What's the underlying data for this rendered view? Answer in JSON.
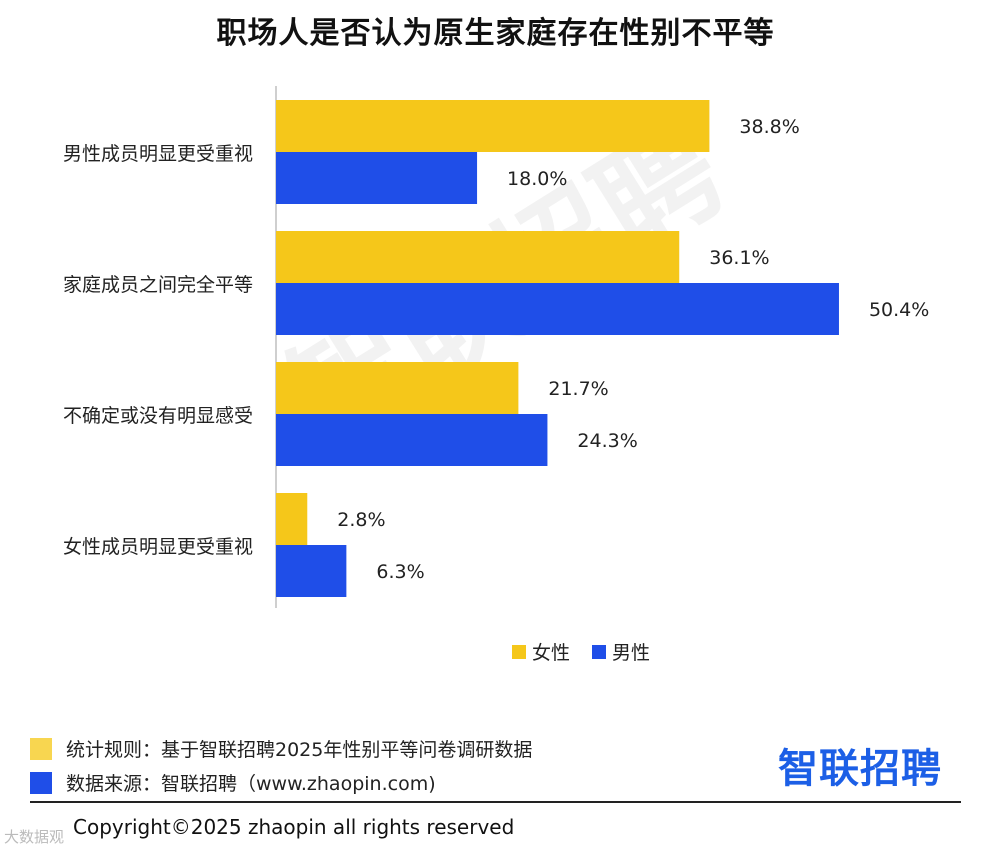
{
  "title": "职场人是否认为原生家庭存在性别不平等",
  "watermark": "智联招聘",
  "colors": {
    "female": "#f5c71a",
    "male": "#1f4ee8"
  },
  "chart_data": {
    "type": "bar",
    "orientation": "horizontal",
    "categories": [
      "男性成员明显更受重视",
      "家庭成员之间完全平等",
      "不确定或没有明显感受",
      "女性成员明显更受重视"
    ],
    "series": [
      {
        "name": "女性",
        "values": [
          38.8,
          36.1,
          21.7,
          2.8
        ],
        "labels": [
          "38.8%",
          "36.1%",
          "21.7%",
          "2.8%"
        ]
      },
      {
        "name": "男性",
        "values": [
          18.0,
          50.4,
          24.3,
          6.3
        ],
        "labels": [
          "18.0%",
          "50.4%",
          "24.3%",
          "6.3%"
        ]
      }
    ],
    "xlim": [
      0,
      55
    ],
    "legend_position": "bottom-center",
    "grid": false
  },
  "footer": {
    "rule_label": "统计规则：基于智联招聘2025年性别平等问卷调研数据",
    "source_label": "数据来源：智联招聘（www.zhaopin.com)",
    "brand": "智联招聘",
    "copyright": "Copyright©2025 zhaopin all rights reserved",
    "corner_mark": "大数据观"
  }
}
